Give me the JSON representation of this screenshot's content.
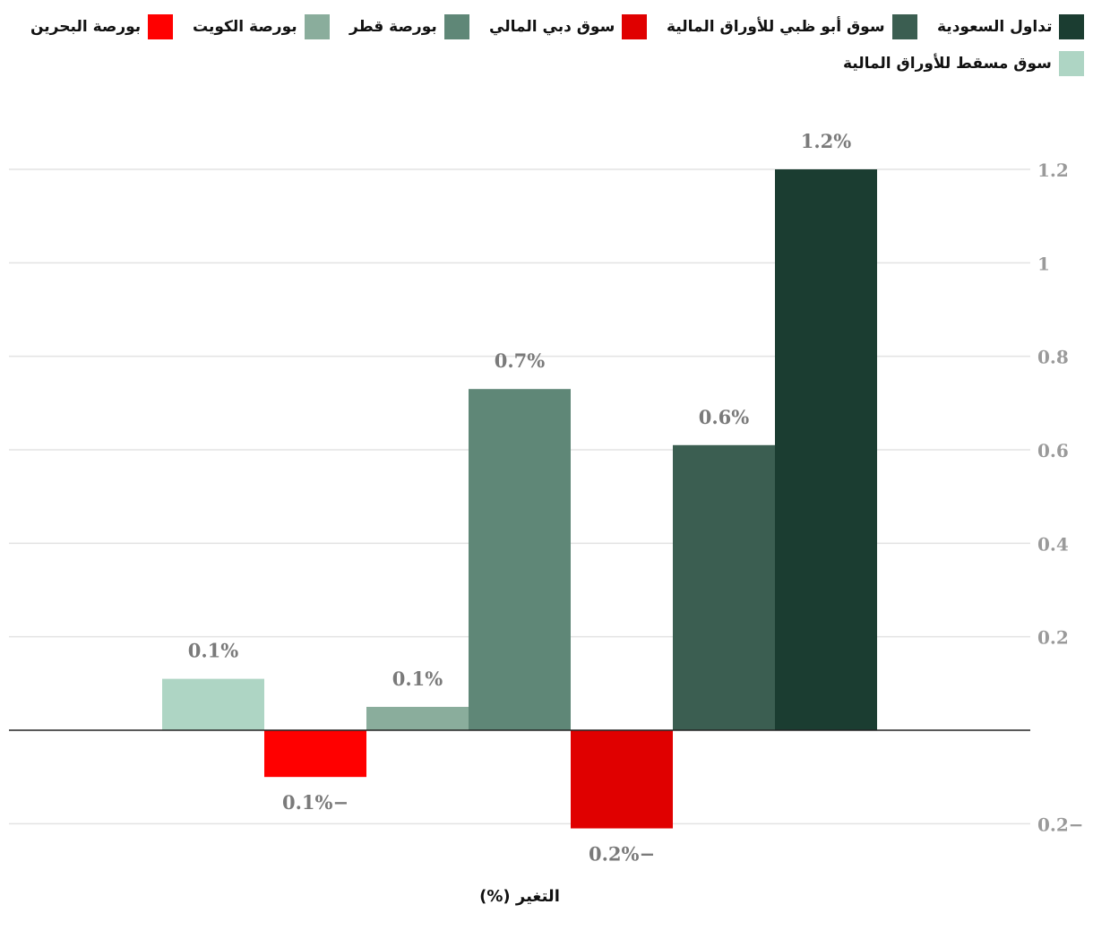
{
  "chart_data": {
    "type": "bar",
    "xlabel": "التغير (%)",
    "ylim": [
      -0.2,
      1.2
    ],
    "yticks": [
      -0.2,
      0.2,
      0.4,
      0.6,
      0.8,
      1,
      1.2
    ],
    "ytick_labels": [
      "0.2−",
      "0.2",
      "0.4",
      "0.6",
      "0.8",
      "1",
      "1.2"
    ],
    "grid": true,
    "legend_position": "top",
    "series": [
      {
        "name": "تداول السعودية",
        "value": 1.2,
        "label": "1.2%",
        "color": "#1b3d31"
      },
      {
        "name": "سوق أبو ظبي للأوراق المالية",
        "value": 0.61,
        "label": "0.6%",
        "color": "#3b5e51"
      },
      {
        "name": "سوق دبي المالي",
        "value": -0.21,
        "label": "0.2%−",
        "color": "#e00000"
      },
      {
        "name": "بورصة قطر",
        "value": 0.73,
        "label": "0.7%",
        "color": "#5f8777"
      },
      {
        "name": "بورصة الكويت",
        "value": 0.05,
        "label": "0.1%",
        "color": "#8aad9c"
      },
      {
        "name": "بورصة البحرين",
        "value": -0.1,
        "label": "0.1%−",
        "color": "#ff0000"
      },
      {
        "name": "سوق مسقط للأوراق المالية",
        "value": 0.11,
        "label": "0.1%",
        "color": "#aed5c4"
      }
    ]
  }
}
